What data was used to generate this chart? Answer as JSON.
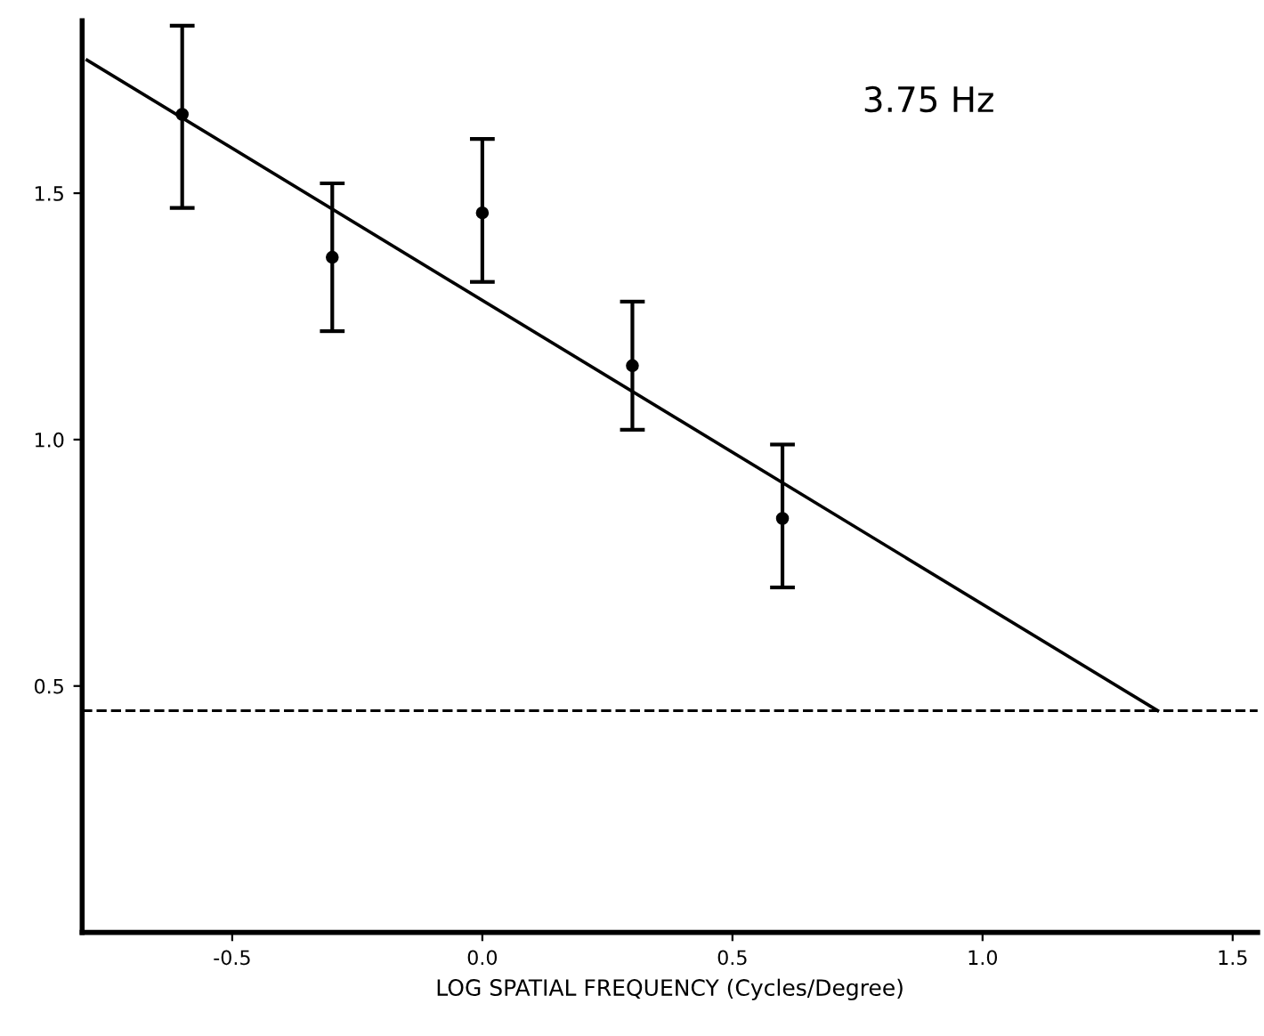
{
  "chart_data": {
    "type": "scatter",
    "xlabel": "LOG SPATIAL FREQUENCY (Cycles/Degree)",
    "annotations": [
      "3.75 Hz"
    ],
    "xlim": [
      -0.8,
      1.55
    ],
    "ylim": [
      0.0,
      1.85
    ],
    "xticks": [
      -0.5,
      {
        "value": 0,
        "label": "0.0"
      },
      0.5,
      {
        "value": 1,
        "label": "1.0"
      },
      1.5
    ],
    "yticks": [
      0.5,
      {
        "value": 1,
        "label": "1.0"
      },
      1.5
    ],
    "grid": false,
    "ref_lines": [
      {
        "axis": "y",
        "value": 0.45,
        "line_style": "dashed",
        "color": "#000000"
      }
    ],
    "series": [
      {
        "marker": "circle",
        "color": "#000000",
        "x": [
          -0.6,
          -0.3,
          0.0,
          0.3,
          0.6
        ],
        "values": [
          1.66,
          1.37,
          1.46,
          1.15,
          0.84
        ],
        "errors": [
          [
            1.47,
            1.84
          ],
          [
            1.22,
            1.52
          ],
          [
            1.32,
            1.61
          ],
          [
            1.02,
            1.28
          ],
          [
            0.7,
            0.99
          ]
        ]
      },
      {
        "type": "line",
        "color": "#000000",
        "x": [
          -0.79,
          1.35
        ],
        "values": [
          1.77,
          0.45
        ]
      }
    ]
  }
}
